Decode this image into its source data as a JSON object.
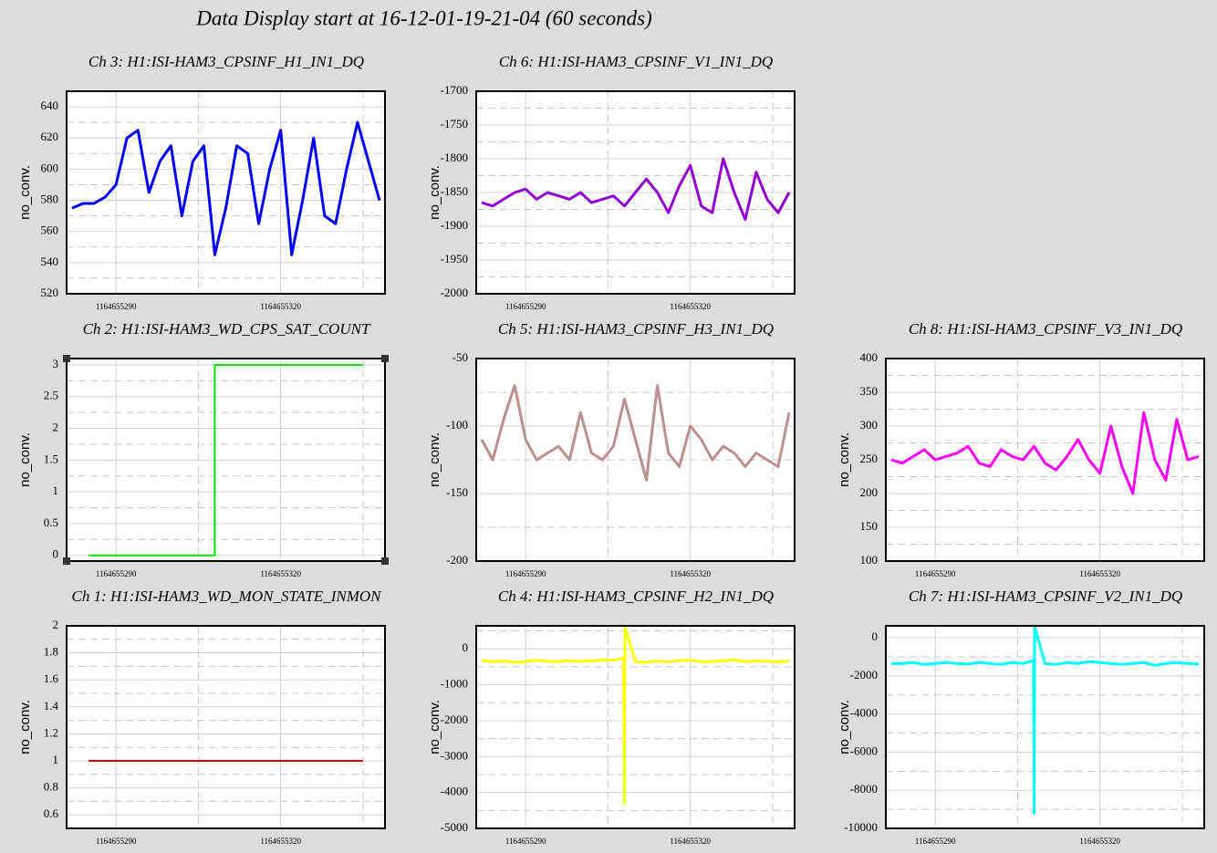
{
  "title": "Data Display start at 16-12-01-19-21-04 (60 seconds)",
  "chart_data": [
    {
      "type": "line",
      "title": "Ch 3: H1:ISI-HAM3_CPSINF_H1_IN1_DQ",
      "ylabel": "no_conv.",
      "color": "#0000ff",
      "xlim": [
        1164655281,
        1164655339
      ],
      "xticks": [
        1164655290,
        1164655320
      ],
      "ylim": [
        520,
        650
      ],
      "yticks": [
        520,
        540,
        560,
        580,
        600,
        620,
        640
      ],
      "x": [
        1164655282,
        1164655284,
        1164655286,
        1164655288,
        1164655290,
        1164655292,
        1164655294,
        1164655296,
        1164655298,
        1164655300,
        1164655302,
        1164655304,
        1164655306,
        1164655308,
        1164655310,
        1164655312,
        1164655314,
        1164655316,
        1164655318,
        1164655320,
        1164655322,
        1164655324,
        1164655326,
        1164655328,
        1164655330,
        1164655332,
        1164655334,
        1164655336,
        1164655338
      ],
      "values": [
        575,
        578,
        578,
        582,
        590,
        620,
        625,
        585,
        605,
        615,
        570,
        605,
        615,
        545,
        575,
        615,
        610,
        565,
        600,
        625,
        545,
        580,
        620,
        570,
        565,
        600,
        630,
        605,
        580
      ]
    },
    {
      "type": "line",
      "title": "Ch 6: H1:ISI-HAM3_CPSINF_V1_IN1_DQ",
      "ylabel": "no_conv.",
      "color": "#9400d3",
      "xlim": [
        1164655281,
        1164655339
      ],
      "xticks": [
        1164655290,
        1164655320
      ],
      "ylim": [
        -2000,
        -1700
      ],
      "yticks": [
        -2000,
        -1950,
        -1900,
        -1850,
        -1800,
        -1750,
        -1700
      ],
      "x": [
        1164655282,
        1164655284,
        1164655286,
        1164655288,
        1164655290,
        1164655292,
        1164655294,
        1164655296,
        1164655298,
        1164655300,
        1164655302,
        1164655304,
        1164655306,
        1164655308,
        1164655310,
        1164655312,
        1164655314,
        1164655316,
        1164655318,
        1164655320,
        1164655322,
        1164655324,
        1164655326,
        1164655328,
        1164655330,
        1164655332,
        1164655334,
        1164655336,
        1164655338
      ],
      "values": [
        -1865,
        -1870,
        -1860,
        -1850,
        -1845,
        -1860,
        -1850,
        -1855,
        -1860,
        -1850,
        -1865,
        -1860,
        -1855,
        -1870,
        -1850,
        -1830,
        -1850,
        -1880,
        -1840,
        -1810,
        -1870,
        -1880,
        -1800,
        -1850,
        -1890,
        -1820,
        -1860,
        -1880,
        -1850
      ]
    },
    {
      "type": "step",
      "title": "Ch 2: H1:ISI-HAM3_WD_CPS_SAT_COUNT",
      "ylabel": "no_conv.",
      "color": "#00e000",
      "selected": true,
      "xlim": [
        1164655281,
        1164655339
      ],
      "xticks": [
        1164655290,
        1164655320
      ],
      "ylim": [
        -0.09,
        3.1
      ],
      "yticks": [
        0,
        0.5,
        1,
        1.5,
        2,
        2.5,
        3
      ],
      "x": [
        1164655285,
        1164655308,
        1164655308,
        1164655335
      ],
      "values": [
        0,
        0,
        3,
        3
      ]
    },
    {
      "type": "line",
      "title": "Ch 5: H1:ISI-HAM3_CPSINF_H3_IN1_DQ",
      "ylabel": "no_conv.",
      "color": "#bc8f8f",
      "xlim": [
        1164655281,
        1164655339
      ],
      "xticks": [
        1164655290,
        1164655320
      ],
      "ylim": [
        -200,
        -50
      ],
      "yticks": [
        -200,
        -150,
        -100,
        -50
      ],
      "x": [
        1164655282,
        1164655284,
        1164655286,
        1164655288,
        1164655290,
        1164655292,
        1164655294,
        1164655296,
        1164655298,
        1164655300,
        1164655302,
        1164655304,
        1164655306,
        1164655308,
        1164655310,
        1164655312,
        1164655314,
        1164655316,
        1164655318,
        1164655320,
        1164655322,
        1164655324,
        1164655326,
        1164655328,
        1164655330,
        1164655332,
        1164655334,
        1164655336,
        1164655338
      ],
      "values": [
        -110,
        -125,
        -95,
        -70,
        -110,
        -125,
        -120,
        -115,
        -125,
        -90,
        -120,
        -125,
        -115,
        -80,
        -110,
        -140,
        -70,
        -120,
        -130,
        -100,
        -110,
        -125,
        -115,
        -120,
        -130,
        -120,
        -125,
        -130,
        -90
      ]
    },
    {
      "type": "line",
      "title": "Ch 8: H1:ISI-HAM3_CPSINF_V3_IN1_DQ",
      "ylabel": "no_conv.",
      "color": "#ff00ff",
      "xlim": [
        1164655281,
        1164655339
      ],
      "xticks": [
        1164655290,
        1164655320
      ],
      "ylim": [
        100,
        400
      ],
      "yticks": [
        100,
        150,
        200,
        250,
        300,
        350,
        400
      ],
      "x": [
        1164655282,
        1164655284,
        1164655286,
        1164655288,
        1164655290,
        1164655292,
        1164655294,
        1164655296,
        1164655298,
        1164655300,
        1164655302,
        1164655304,
        1164655306,
        1164655308,
        1164655310,
        1164655312,
        1164655314,
        1164655316,
        1164655318,
        1164655320,
        1164655322,
        1164655324,
        1164655326,
        1164655328,
        1164655330,
        1164655332,
        1164655334,
        1164655336,
        1164655338
      ],
      "values": [
        250,
        245,
        255,
        265,
        250,
        255,
        260,
        270,
        245,
        240,
        265,
        255,
        250,
        270,
        245,
        235,
        255,
        280,
        250,
        230,
        300,
        240,
        200,
        320,
        250,
        220,
        310,
        250,
        255
      ]
    },
    {
      "type": "step",
      "title": "Ch 1: H1:ISI-HAM3_WD_MON_STATE_INMON",
      "ylabel": "no_conv.",
      "color": "#dd0000",
      "xlim": [
        1164655281,
        1164655339
      ],
      "xticks": [
        1164655290,
        1164655320
      ],
      "ylim": [
        0.5,
        2
      ],
      "yticks": [
        0.6,
        0.8,
        1,
        1.2,
        1.4,
        1.6,
        1.8,
        2
      ],
      "x": [
        1164655285,
        1164655335
      ],
      "values": [
        1,
        1
      ]
    },
    {
      "type": "line",
      "title": "Ch 4: H1:ISI-HAM3_CPSINF_H2_IN1_DQ",
      "ylabel": "no_conv.",
      "color": "#ffff00",
      "xlim": [
        1164655281,
        1164655339
      ],
      "xticks": [
        1164655290,
        1164655320
      ],
      "ylim": [
        -5000,
        640
      ],
      "yticks": [
        -5000,
        -4000,
        -3000,
        -2000,
        -1000,
        0
      ],
      "x": [
        1164655282,
        1164655284,
        1164655286,
        1164655288,
        1164655290,
        1164655292,
        1164655294,
        1164655296,
        1164655298,
        1164655300,
        1164655302,
        1164655304,
        1164655306,
        1164655307.9,
        1164655308,
        1164655308.1,
        1164655310,
        1164655312,
        1164655314,
        1164655316,
        1164655318,
        1164655320,
        1164655322,
        1164655324,
        1164655326,
        1164655328,
        1164655330,
        1164655332,
        1164655334,
        1164655336,
        1164655338
      ],
      "values": [
        -330,
        -360,
        -340,
        -380,
        -350,
        -320,
        -350,
        -360,
        -330,
        -350,
        -340,
        -300,
        -320,
        -250,
        -4300,
        600,
        -350,
        -380,
        -340,
        -360,
        -330,
        -320,
        -360,
        -350,
        -340,
        -300,
        -360,
        -340,
        -350,
        -360,
        -340
      ]
    },
    {
      "type": "line",
      "title": "Ch 7: H1:ISI-HAM3_CPSINF_V2_IN1_DQ",
      "ylabel": "no_conv.",
      "color": "#00ffff",
      "xlim": [
        1164655281,
        1164655339
      ],
      "xticks": [
        1164655290,
        1164655320
      ],
      "ylim": [
        -10000,
        625
      ],
      "yticks": [
        -10000,
        -8000,
        -6000,
        -4000,
        -2000,
        0
      ],
      "x": [
        1164655282,
        1164655284,
        1164655286,
        1164655288,
        1164655290,
        1164655292,
        1164655294,
        1164655296,
        1164655298,
        1164655300,
        1164655302,
        1164655304,
        1164655306,
        1164655307.9,
        1164655308,
        1164655308.1,
        1164655310,
        1164655312,
        1164655314,
        1164655316,
        1164655318,
        1164655320,
        1164655322,
        1164655324,
        1164655326,
        1164655328,
        1164655330,
        1164655332,
        1164655334,
        1164655336,
        1164655338
      ],
      "values": [
        -1350,
        -1350,
        -1300,
        -1400,
        -1350,
        -1300,
        -1350,
        -1380,
        -1300,
        -1350,
        -1400,
        -1300,
        -1350,
        -1200,
        -9200,
        600,
        -1350,
        -1400,
        -1300,
        -1350,
        -1250,
        -1300,
        -1350,
        -1400,
        -1350,
        -1300,
        -1450,
        -1350,
        -1300,
        -1350,
        -1380
      ]
    }
  ]
}
